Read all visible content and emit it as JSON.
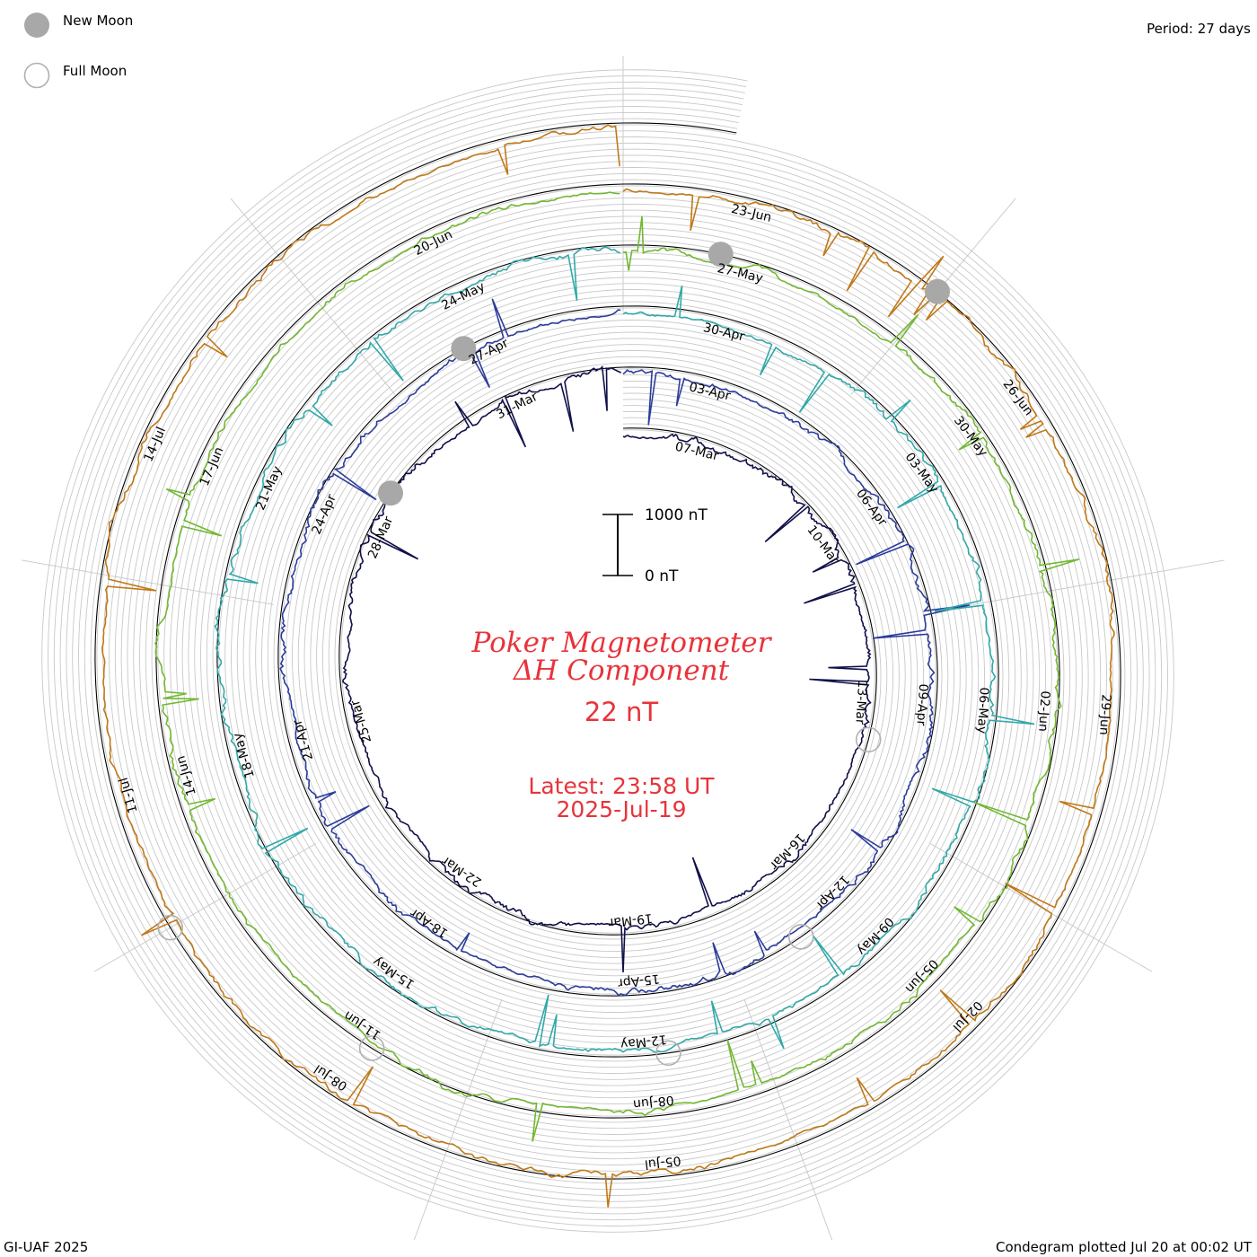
{
  "header": {
    "period": "Period: 27 days",
    "credit": "GI-UAF 2025",
    "plotted": "Condegram plotted Jul 20 at 00:02 UT"
  },
  "legend": {
    "new_moon": "New Moon",
    "full_moon": "Full Moon",
    "new_moon_color": "#a8a8a8",
    "full_moon_color": "#b0b0b0"
  },
  "scale_bar": {
    "top_label": "1000 nT",
    "bottom_label": "0 nT"
  },
  "center": {
    "title_line1": "Poker Magnetometer",
    "title_line2": "ΔH Component",
    "value": "22 nT",
    "latest": "Latest: 23:58 UT",
    "date": "2025-Jul-19",
    "text_color": "#e8333a"
  },
  "chart_data": {
    "type": "line",
    "layout": "condegram spiral (clockwise, one turn per period, start at top)",
    "period_days": 27,
    "units": "nT",
    "scale_bar": [
      0,
      1000
    ],
    "start_date": "2025-03-06",
    "end_date": "2025-07-19",
    "current_value": 22,
    "cycles": [
      {
        "color": "#10104a",
        "dates": [
          "07-Mar",
          "10-Mar",
          "13-Mar",
          "16-Mar",
          "19-Mar",
          "22-Mar",
          "25-Mar",
          "28-Mar",
          "31-Mar"
        ]
      },
      {
        "color": "#2c3c9a",
        "dates": [
          "03-Apr",
          "06-Apr",
          "09-Apr",
          "12-Apr",
          "15-Apr",
          "18-Apr",
          "21-Apr",
          "24-Apr",
          "27-Apr"
        ]
      },
      {
        "color": "#32a8a8",
        "dates": [
          "30-Apr",
          "03-May",
          "06-May",
          "09-May",
          "12-May",
          "15-May",
          "18-May",
          "21-May",
          "24-May"
        ]
      },
      {
        "color": "#72b832",
        "dates": [
          "27-May",
          "30-May",
          "02-Jun",
          "05-Jun",
          "08-Jun",
          "11-Jun",
          "14-Jun",
          "17-Jun",
          "20-Jun"
        ]
      },
      {
        "color": "#c07818",
        "dates": [
          "23-Jun",
          "26-Jun",
          "29-Jun",
          "02-Jul",
          "05-Jul",
          "08-Jul",
          "11-Jul",
          "14-Jul"
        ]
      }
    ],
    "new_moons": [
      "2025-03-29",
      "2025-04-27",
      "2025-05-27",
      "2025-06-25"
    ],
    "full_moons": [
      "2025-03-14",
      "2025-04-13",
      "2025-05-12",
      "2025-06-11",
      "2025-07-10"
    ],
    "grid": true
  }
}
